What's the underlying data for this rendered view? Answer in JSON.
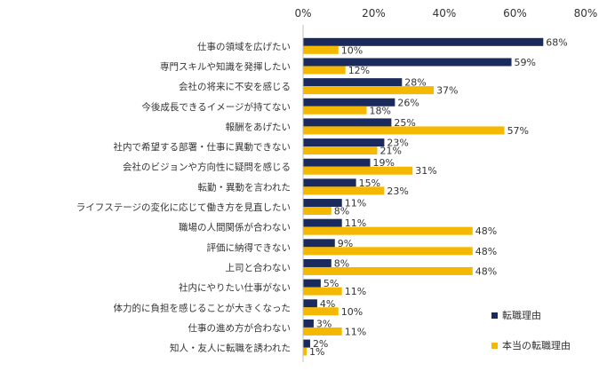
{
  "chart_data": {
    "type": "bar",
    "orientation": "horizontal",
    "xlim": [
      0,
      80
    ],
    "x_ticks": [
      "0%",
      "20%",
      "40%",
      "60%",
      "80%"
    ],
    "grid": false,
    "legend_position": "bottom-right",
    "categories": [
      "仕事の領域を広げたい",
      "専門スキルや知識を発揮したい",
      "会社の将来に不安を感じる",
      "今後成長できるイメージが持てない",
      "報酬をあげたい",
      "社内で希望する部署・仕事に異動できない",
      "会社のビジョンや方向性に疑問を感じる",
      "転勤・異動を言われた",
      "ライフステージの変化に応じて働き方を見直したい",
      "職場の人間関係が合わない",
      "評価に納得できない",
      "上司と合わない",
      "社内にやりたい仕事がない",
      "体力的に負担を感じることが大きくなった",
      "仕事の進め方が合わない",
      "知人・友人に転職を誘われた"
    ],
    "series": [
      {
        "name": "転職理由",
        "color": "#1a2a5c",
        "values": [
          68,
          59,
          28,
          26,
          25,
          23,
          19,
          15,
          11,
          11,
          9,
          8,
          5,
          4,
          3,
          2
        ],
        "labels": [
          "68%",
          "59%",
          "28%",
          "26%",
          "25%",
          "23%",
          "19%",
          "15%",
          "11%",
          "11%",
          "9%",
          "8%",
          "5%",
          "4%",
          "3%",
          "2%"
        ]
      },
      {
        "name": "本当の転職理由",
        "color": "#f5b800",
        "values": [
          10,
          12,
          37,
          18,
          57,
          21,
          31,
          23,
          8,
          48,
          48,
          48,
          11,
          10,
          11,
          1
        ],
        "labels": [
          "10%",
          "12%",
          "37%",
          "18%",
          "57%",
          "21%",
          "31%",
          "23%",
          "8%",
          "48%",
          "48%",
          "48%",
          "11%",
          "10%",
          "11%",
          "1%"
        ]
      }
    ]
  }
}
